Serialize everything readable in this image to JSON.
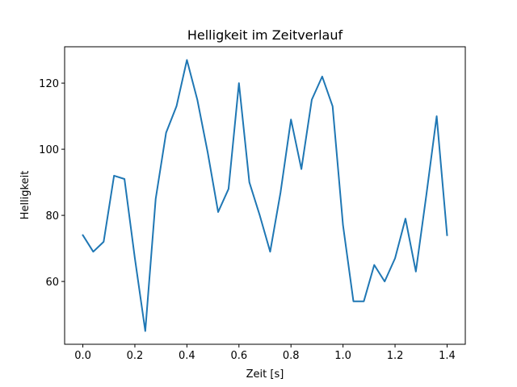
{
  "chart_data": {
    "type": "line",
    "title": "Helligkeit im Zeitverlauf",
    "xlabel": "Zeit [s]",
    "ylabel": "Helligkeit",
    "xlim": [
      -0.07,
      1.47
    ],
    "ylim": [
      41,
      131
    ],
    "xticks": [
      0.0,
      0.2,
      0.4,
      0.6,
      0.8,
      1.0,
      1.2,
      1.4
    ],
    "xtick_labels": [
      "0.0",
      "0.2",
      "0.4",
      "0.6",
      "0.8",
      "1.0",
      "1.2",
      "1.4"
    ],
    "yticks": [
      60,
      80,
      100,
      120
    ],
    "ytick_labels": [
      "60",
      "80",
      "100",
      "120"
    ],
    "grid": false,
    "legend": "none",
    "series": [
      {
        "color": "#1f77b4",
        "x": [
          0.0,
          0.04,
          0.08,
          0.12,
          0.16,
          0.2,
          0.24,
          0.28,
          0.32,
          0.36,
          0.4,
          0.44,
          0.48,
          0.52,
          0.56,
          0.6,
          0.64,
          0.68,
          0.72,
          0.76,
          0.8,
          0.84,
          0.88,
          0.92,
          0.96,
          1.0,
          1.04,
          1.08,
          1.12,
          1.16,
          1.2,
          1.24,
          1.28,
          1.32,
          1.36,
          1.4
        ],
        "y": [
          74,
          69,
          72,
          92,
          91,
          67,
          45,
          85,
          105,
          113,
          127,
          115,
          99,
          81,
          88,
          120,
          90,
          80,
          69,
          87,
          109,
          94,
          115,
          122,
          113,
          77,
          54,
          54,
          65,
          60,
          67,
          79,
          63,
          86,
          110,
          74
        ]
      }
    ]
  }
}
